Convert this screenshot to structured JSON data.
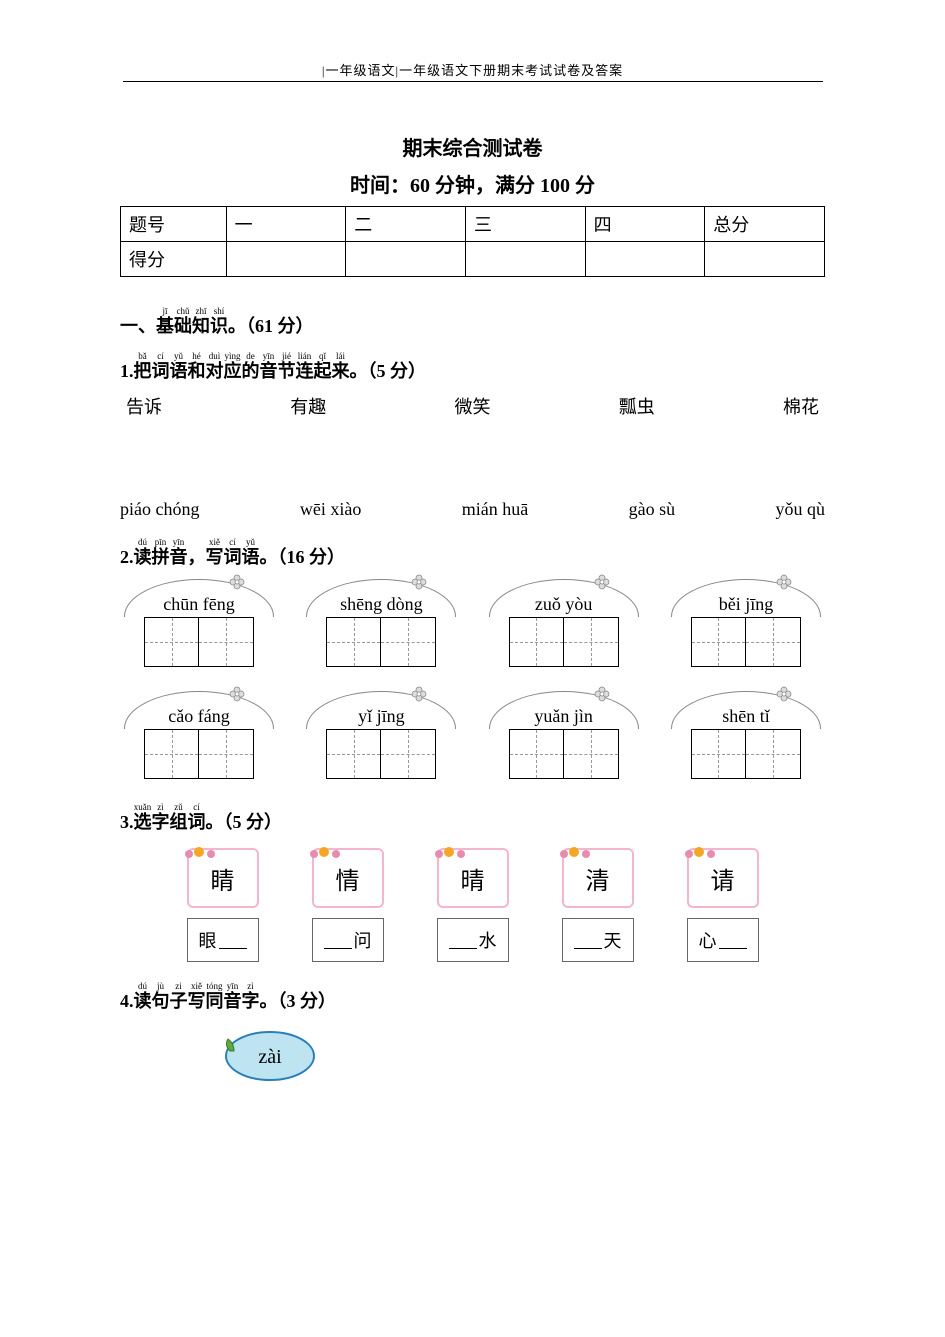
{
  "header": "|一年级语文|一年级语文下册期末考试试卷及答案",
  "title": "期末综合测试卷",
  "subtitle": "时间：60 分钟，满分 100 分",
  "score_table": {
    "headers": [
      "题号",
      "一",
      "二",
      "三",
      "四",
      "总分"
    ],
    "row_label": "得分",
    "col_widths": [
      "15%",
      "17%",
      "17%",
      "17%",
      "17%",
      "17%"
    ]
  },
  "section1": {
    "label_chars": [
      "基",
      "础",
      "知",
      "识"
    ],
    "label_pinyin": [
      "jī",
      "chǔ",
      "zhī",
      "shí"
    ],
    "prefix": "一、",
    "points": "（61 分）"
  },
  "q1": {
    "num": "1.",
    "label_chars": [
      "把",
      "词",
      "语",
      "和",
      "对",
      "应",
      "的",
      "音",
      "节",
      "连",
      "起",
      "来"
    ],
    "label_pinyin": [
      "bǎ",
      "cí",
      "yǔ",
      "hé",
      "duì",
      "yìng",
      "de",
      "yīn",
      "jié",
      "lián",
      "qǐ",
      "lái"
    ],
    "points": "（5 分）",
    "words": [
      "告诉",
      "有趣",
      "微笑",
      "瓢虫",
      "棉花"
    ],
    "pinyins": [
      "piáo chóng",
      "wēi xiào",
      "mián huā",
      "gào sù",
      "yǒu qù"
    ]
  },
  "q2": {
    "num": "2.",
    "label_chars": [
      "读",
      "拼",
      "音",
      "，",
      "写",
      "词",
      "语"
    ],
    "label_pinyin": [
      "dú",
      "pīn",
      "yīn",
      "",
      "xiě",
      "cí",
      "yǔ"
    ],
    "points": "（16 分）",
    "boxes": [
      [
        "chūn fēng",
        "shēng dòng",
        "zuǒ yòu",
        "běi jīng"
      ],
      [
        "cǎo fáng",
        "yǐ jīng",
        "yuǎn jìn",
        "shēn tǐ"
      ]
    ]
  },
  "q3": {
    "num": "3.",
    "label_chars": [
      "选",
      "字",
      "组",
      "词"
    ],
    "label_pinyin": [
      "xuǎn",
      "zì",
      "zǔ",
      "cí"
    ],
    "points": "（5 分）",
    "chars": [
      "睛",
      "情",
      "晴",
      "清",
      "请"
    ],
    "fills": [
      {
        "pre": "眼",
        "post": ""
      },
      {
        "pre": "",
        "post": "问"
      },
      {
        "pre": "",
        "post": "水"
      },
      {
        "pre": "",
        "post": "天"
      },
      {
        "pre": "心",
        "post": ""
      }
    ]
  },
  "q4": {
    "num": "4.",
    "label_chars": [
      "读",
      "句",
      "子",
      "写",
      "同",
      "音",
      "字"
    ],
    "label_pinyin": [
      "dú",
      "jù",
      "zi",
      "xiě",
      "tóng",
      "yīn",
      "zì"
    ],
    "points": "（3 分）",
    "lemon_text": "zài"
  },
  "colors": {
    "text": "#000000",
    "border_gray": "#888888",
    "dash_gray": "#999999",
    "card_pink": "#f4b6cf",
    "deco_orange": "#f5a623",
    "deco_pink": "#e88bb0",
    "lemon_fill": "#bde4f0",
    "lemon_stroke": "#2a7fb8",
    "leaf_green": "#5fa843"
  }
}
